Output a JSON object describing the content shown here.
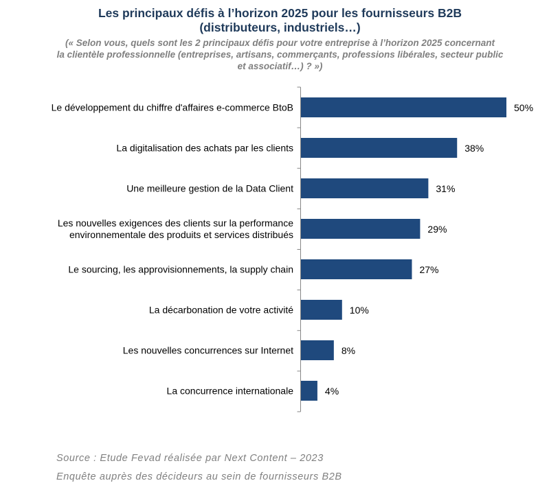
{
  "title_line1": "Les principaux défis à l’horizon 2025 pour les fournisseurs B2B",
  "title_line2": "(distributeurs, industriels…)",
  "subtitle_line1": "(« Selon vous, quels sont les 2 principaux défis pour votre entreprise à l’horizon 2025 concernant",
  "subtitle_line2": "la clientèle professionnelle (entreprises, artisans, commerçants, professions libérales, secteur public",
  "subtitle_line3": "et associatif…) ? »)",
  "source_line1": "Source : Etude Fevad réalisée par Next Content – 2023",
  "source_line2": "Enquête auprès des décideurs au sein de fournisseurs B2B",
  "colors": {
    "bar": "#1f497d",
    "axis": "#868686"
  },
  "chart_data": {
    "type": "bar",
    "orientation": "horizontal",
    "categories": [
      [
        "Le développement du chiffre d'affaires e-commerce BtoB"
      ],
      [
        "La digitalisation des achats par les clients"
      ],
      [
        "Une meilleure gestion de la Data Client"
      ],
      [
        "Les nouvelles exigences des clients sur la performance",
        "environnementale des produits et services distribués"
      ],
      [
        "Le sourcing, les approvisionnements, la supply chain"
      ],
      [
        "La décarbonation de votre activité"
      ],
      [
        "Les nouvelles concurrences sur Internet"
      ],
      [
        "La concurrence internationale"
      ]
    ],
    "values": [
      50,
      38,
      31,
      29,
      27,
      10,
      8,
      4
    ],
    "value_labels": [
      "50%",
      "38%",
      "31%",
      "29%",
      "27%",
      "10%",
      "8%",
      "4%"
    ],
    "unit": "%",
    "xlim": [
      0,
      50
    ],
    "grid": false,
    "legend": "none"
  }
}
